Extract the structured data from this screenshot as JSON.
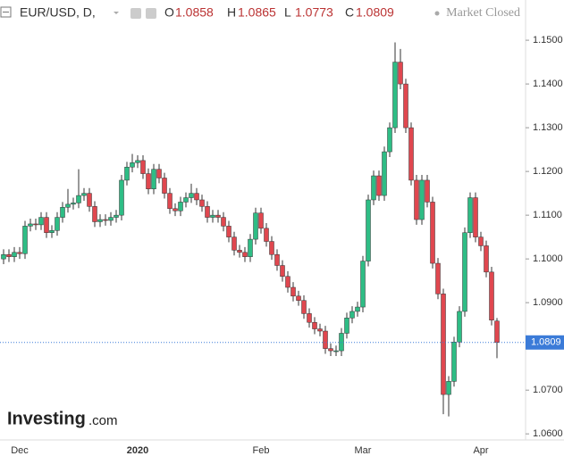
{
  "chart_data": {
    "type": "candlestick",
    "symbol": "EUR/USD, D,",
    "ohlc_labels": [
      "O",
      "H",
      "L",
      "C"
    ],
    "status": "Market Closed",
    "logo": [
      "Investing",
      ".com"
    ],
    "up_color": "#2ebd85",
    "down_color": "#e0474f",
    "price_line_color": "#3b7bd8",
    "categories": [
      null,
      null,
      null,
      "Dec",
      null,
      null,
      null,
      null,
      null,
      null,
      null,
      null,
      null,
      null,
      null,
      null,
      null,
      null,
      null,
      null,
      null,
      null,
      null,
      null,
      null,
      "2020",
      null,
      null,
      null,
      null,
      null,
      null,
      null,
      null,
      null,
      null,
      null,
      null,
      null,
      null,
      null,
      null,
      null,
      null,
      null,
      null,
      null,
      null,
      "Feb",
      null,
      null,
      null,
      null,
      null,
      null,
      null,
      null,
      null,
      null,
      null,
      null,
      null,
      null,
      null,
      null,
      null,
      null,
      "Mar",
      null,
      null,
      null,
      null,
      null,
      null,
      null,
      null,
      null,
      null,
      null,
      null,
      null,
      null,
      null,
      null,
      null,
      null,
      null,
      null,
      null,
      "Apr",
      null,
      null,
      null
    ],
    "open": [
      1.1,
      1.101,
      1.1005,
      1.1015,
      1.1012,
      1.1075,
      1.108,
      1.1078,
      1.1095,
      1.106,
      1.1065,
      1.1095,
      1.1118,
      1.1125,
      1.1128,
      1.1145,
      1.115,
      1.112,
      1.1085,
      1.109,
      1.1088,
      1.1095,
      1.11,
      1.118,
      1.121,
      1.122,
      1.1225,
      1.1195,
      1.116,
      1.1205,
      1.1185,
      1.115,
      1.1115,
      1.111,
      1.113,
      1.114,
      1.115,
      1.1135,
      1.112,
      1.1095,
      1.11,
      1.1095,
      1.1075,
      1.105,
      1.102,
      1.1015,
      1.1005,
      1.1045,
      1.1105,
      1.107,
      1.104,
      1.101,
      1.0985,
      1.096,
      1.0935,
      1.0915,
      1.0905,
      1.0875,
      1.0855,
      1.084,
      1.0835,
      1.0795,
      1.079,
      1.079,
      1.083,
      1.0865,
      1.088,
      1.089,
      1.0995,
      1.1135,
      1.119,
      1.1145,
      1.1245,
      1.13,
      1.145,
      1.14,
      1.13,
      1.118,
      1.109,
      1.118,
      1.113,
      1.099,
      1.092,
      1.069,
      1.072,
      1.081,
      1.088,
      1.106,
      1.114,
      1.105,
      1.103,
      1.097,
      1.0858
    ],
    "high": [
      1.1022,
      1.1022,
      1.1027,
      1.1027,
      1.1087,
      1.1092,
      1.1092,
      1.1107,
      1.1107,
      1.1077,
      1.1107,
      1.113,
      1.116,
      1.114,
      1.1205,
      1.1162,
      1.1162,
      1.1132,
      1.1102,
      1.1102,
      1.1107,
      1.1112,
      1.1192,
      1.1222,
      1.124,
      1.1237,
      1.1237,
      1.1207,
      1.1217,
      1.1217,
      1.1197,
      1.1162,
      1.1127,
      1.1142,
      1.1152,
      1.1172,
      1.1162,
      1.1147,
      1.1132,
      1.1112,
      1.1112,
      1.1107,
      1.1087,
      1.1062,
      1.1032,
      1.1027,
      1.1057,
      1.1117,
      1.1117,
      1.1082,
      1.1052,
      1.1022,
      1.0997,
      1.0972,
      1.0947,
      1.0927,
      1.0917,
      1.0887,
      1.0867,
      1.0852,
      1.0847,
      1.0807,
      1.0802,
      1.0842,
      1.0877,
      1.0892,
      1.0902,
      1.1007,
      1.1147,
      1.1202,
      1.1202,
      1.1257,
      1.1312,
      1.1495,
      1.148,
      1.1412,
      1.1312,
      1.1192,
      1.1192,
      1.1192,
      1.1142,
      1.1002,
      1.0932,
      1.0732,
      1.0822,
      1.0892,
      1.1072,
      1.1152,
      1.1152,
      1.1062,
      1.1042,
      1.0982,
      1.0865
    ],
    "low": [
      1.0988,
      1.0993,
      1.0993,
      1.1,
      1.1,
      1.1063,
      1.1066,
      1.1066,
      1.1048,
      1.1048,
      1.1053,
      1.1083,
      1.1106,
      1.1113,
      1.1116,
      1.1133,
      1.1108,
      1.1073,
      1.1073,
      1.1076,
      1.1076,
      1.1083,
      1.1088,
      1.1168,
      1.1198,
      1.1208,
      1.1183,
      1.1148,
      1.1148,
      1.1173,
      1.1138,
      1.1103,
      1.1098,
      1.1098,
      1.1118,
      1.1128,
      1.1123,
      1.1108,
      1.1083,
      1.1083,
      1.1083,
      1.1063,
      1.1038,
      1.1008,
      1.1003,
      1.0993,
      1.0993,
      1.1033,
      1.1058,
      1.1028,
      1.0998,
      1.0973,
      1.0948,
      1.0923,
      1.0903,
      1.0893,
      1.0863,
      1.0843,
      1.0828,
      1.0823,
      1.0783,
      1.0778,
      1.0778,
      1.0778,
      1.0818,
      1.0853,
      1.0868,
      1.0878,
      1.0983,
      1.1123,
      1.1133,
      1.1133,
      1.1233,
      1.1288,
      1.1388,
      1.1288,
      1.1168,
      1.1078,
      1.1078,
      1.1118,
      1.0978,
      1.0908,
      1.0645,
      1.064,
      1.0708,
      1.0798,
      1.0868,
      1.1048,
      1.1038,
      1.1018,
      1.0958,
      1.0848,
      1.0773
    ],
    "close": [
      1.101,
      1.1005,
      1.1015,
      1.1012,
      1.1075,
      1.108,
      1.1078,
      1.1095,
      1.106,
      1.1065,
      1.1095,
      1.1118,
      1.1125,
      1.1128,
      1.1145,
      1.115,
      1.112,
      1.1085,
      1.109,
      1.1088,
      1.1095,
      1.11,
      1.118,
      1.121,
      1.122,
      1.1225,
      1.1195,
      1.116,
      1.1205,
      1.1185,
      1.115,
      1.1115,
      1.111,
      1.113,
      1.114,
      1.115,
      1.1135,
      1.112,
      1.1095,
      1.11,
      1.1095,
      1.1075,
      1.105,
      1.102,
      1.1015,
      1.1005,
      1.1045,
      1.1105,
      1.107,
      1.104,
      1.101,
      1.0985,
      1.096,
      1.0935,
      1.0915,
      1.0905,
      1.0875,
      1.0855,
      1.084,
      1.0835,
      1.0795,
      1.079,
      1.079,
      1.083,
      1.0865,
      1.088,
      1.089,
      1.0995,
      1.1135,
      1.119,
      1.1145,
      1.1245,
      1.13,
      1.145,
      1.14,
      1.13,
      1.118,
      1.109,
      1.118,
      1.113,
      1.099,
      1.092,
      1.069,
      1.072,
      1.081,
      1.088,
      1.106,
      1.114,
      1.105,
      1.103,
      1.097,
      1.086,
      1.0809
    ],
    "ylim": [
      1.058,
      1.1592
    ],
    "yticks": [
      {
        "value": 1.06,
        "label": "1.0600"
      },
      {
        "value": 1.07,
        "label": "1.0700"
      },
      {
        "value": 1.08,
        "label": "1.0800"
      },
      {
        "value": 1.09,
        "label": "1.0900"
      },
      {
        "value": 1.1,
        "label": "1.1000"
      },
      {
        "value": 1.11,
        "label": "1.1100"
      },
      {
        "value": 1.12,
        "label": "1.1200"
      },
      {
        "value": 1.13,
        "label": "1.1300"
      },
      {
        "value": 1.14,
        "label": "1.1400"
      },
      {
        "value": 1.15,
        "label": "1.1500"
      }
    ]
  }
}
